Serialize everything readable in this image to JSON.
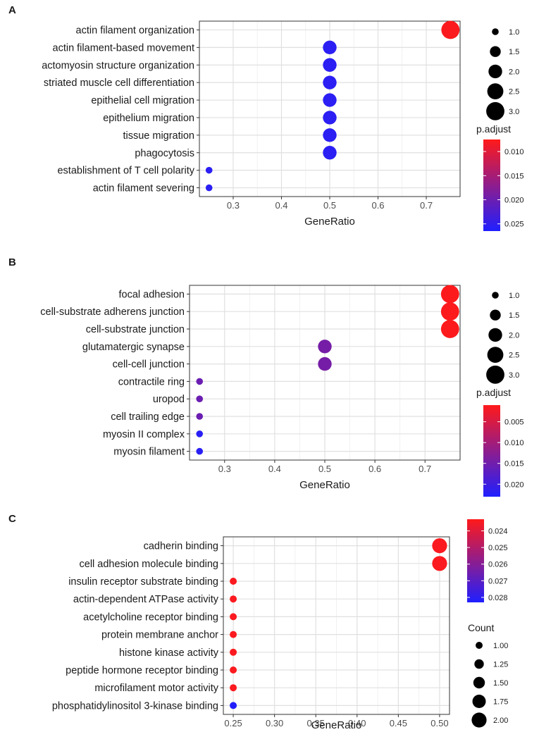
{
  "chart_data": [
    {
      "panel": "A",
      "type": "scatter",
      "xlabel": "GeneRatio",
      "ylabel": "",
      "xlim": [
        0.23,
        0.77
      ],
      "x_ticks": [
        0.3,
        0.4,
        0.5,
        0.6,
        0.7
      ],
      "x_tick_labels": [
        "0.3",
        "0.4",
        "0.5",
        "0.6",
        "0.7"
      ],
      "grid": true,
      "categories": [
        "actin filament organization",
        "actin filament-based movement",
        "actomyosin structure organization",
        "striated muscle cell differentiation",
        "epithelial cell migration",
        "epithelium migration",
        "tissue migration",
        "phagocytosis",
        "establishment of T cell polarity",
        "actin filament severing"
      ],
      "x": [
        0.75,
        0.5,
        0.5,
        0.5,
        0.5,
        0.5,
        0.5,
        0.5,
        0.25,
        0.25
      ],
      "count": [
        3,
        2,
        2,
        2,
        2,
        2,
        2,
        2,
        1,
        1
      ],
      "p_adjust": [
        0.0078,
        0.0255,
        0.0255,
        0.0255,
        0.0255,
        0.0255,
        0.0255,
        0.0255,
        0.0255,
        0.0255
      ],
      "size_legend": {
        "title": "",
        "values": [
          1.0,
          1.5,
          2.0,
          2.5,
          3.0
        ],
        "labels": [
          "1.0",
          "1.5",
          "2.0",
          "2.5",
          "3.0"
        ],
        "position": "top-right"
      },
      "color_legend": {
        "title": "p.adjust",
        "min": 0.0075,
        "max": 0.0265,
        "ticks": [
          0.01,
          0.015,
          0.02,
          0.025
        ],
        "tick_labels": [
          "0.010",
          "0.015",
          "0.020",
          "0.025"
        ],
        "position": "bottom-right"
      }
    },
    {
      "panel": "B",
      "type": "scatter",
      "xlabel": "GeneRatio",
      "ylabel": "",
      "xlim": [
        0.23,
        0.77
      ],
      "x_ticks": [
        0.3,
        0.4,
        0.5,
        0.6,
        0.7
      ],
      "x_tick_labels": [
        "0.3",
        "0.4",
        "0.5",
        "0.6",
        "0.7"
      ],
      "grid": true,
      "categories": [
        "focal adhesion",
        "cell-substrate adherens junction",
        "cell-substrate junction",
        "glutamatergic synapse",
        "cell-cell junction",
        "contractile ring",
        "uropod",
        "cell trailing edge",
        "myosin II complex",
        "myosin filament"
      ],
      "x": [
        0.75,
        0.75,
        0.75,
        0.5,
        0.5,
        0.25,
        0.25,
        0.25,
        0.25,
        0.25
      ],
      "count": [
        3,
        3,
        3,
        2,
        2,
        1,
        1,
        1,
        1,
        1
      ],
      "p_adjust": [
        0.0012,
        0.0012,
        0.0012,
        0.0145,
        0.0145,
        0.0155,
        0.0155,
        0.0155,
        0.022,
        0.022
      ],
      "size_legend": {
        "title": "",
        "values": [
          1.0,
          1.5,
          2.0,
          2.5,
          3.0
        ],
        "labels": [
          "1.0",
          "1.5",
          "2.0",
          "2.5",
          "3.0"
        ],
        "position": "top-right"
      },
      "color_legend": {
        "title": "p.adjust",
        "min": 0.001,
        "max": 0.023,
        "ticks": [
          0.005,
          0.01,
          0.015,
          0.02
        ],
        "tick_labels": [
          "0.005",
          "0.010",
          "0.015",
          "0.020"
        ],
        "position": "bottom-right"
      }
    },
    {
      "panel": "C",
      "type": "scatter",
      "xlabel": "GeneRatio",
      "ylabel": "",
      "xlim": [
        0.238,
        0.512
      ],
      "x_ticks": [
        0.25,
        0.3,
        0.35,
        0.4,
        0.45,
        0.5
      ],
      "x_tick_labels": [
        "0.25",
        "0.30",
        "0.35",
        "0.40",
        "0.45",
        "0.50"
      ],
      "grid": true,
      "categories": [
        "cadherin binding",
        "cell adhesion molecule binding",
        "insulin receptor substrate binding",
        "actin-dependent ATPase activity",
        "acetylcholine receptor binding",
        "protein membrane anchor",
        "histone kinase activity",
        "peptide hormone receptor binding",
        "microfilament motor activity",
        "phosphatidylinositol 3-kinase binding"
      ],
      "x": [
        0.5,
        0.5,
        0.25,
        0.25,
        0.25,
        0.25,
        0.25,
        0.25,
        0.25,
        0.25
      ],
      "count": [
        2,
        2,
        1,
        1,
        1,
        1,
        1,
        1,
        1,
        1
      ],
      "p_adjust": [
        0.0234,
        0.0234,
        0.0234,
        0.0234,
        0.0234,
        0.0234,
        0.0234,
        0.0234,
        0.0234,
        0.0282
      ],
      "size_legend": {
        "title": "Count",
        "values": [
          1.0,
          1.25,
          1.5,
          1.75,
          2.0
        ],
        "labels": [
          "1.00",
          "1.25",
          "1.50",
          "1.75",
          "2.00"
        ],
        "position": "bottom-right"
      },
      "color_legend": {
        "title": "",
        "min": 0.0233,
        "max": 0.0283,
        "ticks": [
          0.024,
          0.025,
          0.026,
          0.027,
          0.028
        ],
        "tick_labels": [
          "0.024",
          "0.025",
          "0.026",
          "0.027",
          "0.028"
        ],
        "position": "top-right"
      }
    }
  ],
  "colors": {
    "high": "#ff1a1a",
    "low": "#1f1fff",
    "grid": "#e0e0e0",
    "border": "#333333"
  }
}
